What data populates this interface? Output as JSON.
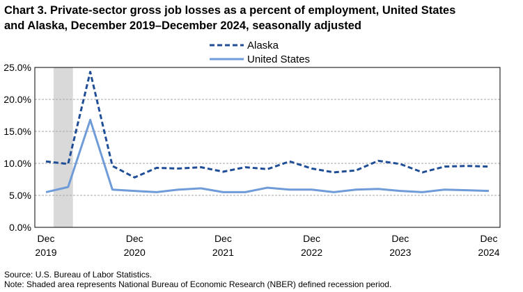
{
  "title_line1": "Chart 3. Private-sector gross job losses as a percent of employment, United States",
  "title_line2": "and Alaska, December 2019–December 2024, seasonally adjusted",
  "source": "Source: U.S. Bureau of Labor Statistics.",
  "note": "Note: Shaded area represents National Bureau of Economic Research (NBER) defined  recession period.",
  "chart_data": {
    "type": "line",
    "title": "Chart 3. Private-sector gross job losses as a percent of employment, United States and Alaska, December 2019–December 2024, seasonally adjusted",
    "x": [
      "Dec 2019",
      "Mar 2020",
      "Jun 2020",
      "Sep 2020",
      "Dec 2020",
      "Mar 2021",
      "Jun 2021",
      "Sep 2021",
      "Dec 2021",
      "Mar 2022",
      "Jun 2022",
      "Sep 2022",
      "Dec 2022",
      "Mar 2023",
      "Jun 2023",
      "Sep 2023",
      "Dec 2023",
      "Mar 2024",
      "Jun 2024",
      "Sep 2024",
      "Dec 2024"
    ],
    "x_ticks": [
      {
        "index": 0,
        "line1": "Dec",
        "line2": "2019"
      },
      {
        "index": 4,
        "line1": "Dec",
        "line2": "2020"
      },
      {
        "index": 8,
        "line1": "Dec",
        "line2": "2021"
      },
      {
        "index": 12,
        "line1": "Dec",
        "line2": "2022"
      },
      {
        "index": 16,
        "line1": "Dec",
        "line2": "2023"
      },
      {
        "index": 20,
        "line1": "Dec",
        "line2": "2024"
      }
    ],
    "y_ticks": [
      "0.0%",
      "5.0%",
      "10.0%",
      "15.0%",
      "20.0%",
      "25.0%"
    ],
    "ylim": [
      0,
      25
    ],
    "y_step": 5,
    "grid": true,
    "legend_position": "top-center",
    "recession_shading": {
      "from_index": 0.5,
      "to_index": 1.5,
      "color": "#d9d9d9"
    },
    "series": [
      {
        "name": "Alaska",
        "style": "dashed",
        "color": "#1f4e96",
        "values": [
          10.3,
          9.9,
          24.3,
          9.6,
          7.8,
          9.3,
          9.2,
          9.4,
          8.7,
          9.4,
          9.1,
          10.3,
          9.2,
          8.6,
          8.9,
          10.4,
          9.9,
          8.6,
          9.5,
          9.6,
          9.5
        ]
      },
      {
        "name": "United States",
        "style": "solid",
        "color": "#6f9bd8",
        "values": [
          5.5,
          6.3,
          16.8,
          5.9,
          5.7,
          5.5,
          5.9,
          6.1,
          5.5,
          5.5,
          6.2,
          5.9,
          5.9,
          5.5,
          5.9,
          6.0,
          5.7,
          5.5,
          5.9,
          5.8,
          5.7
        ]
      }
    ]
  }
}
